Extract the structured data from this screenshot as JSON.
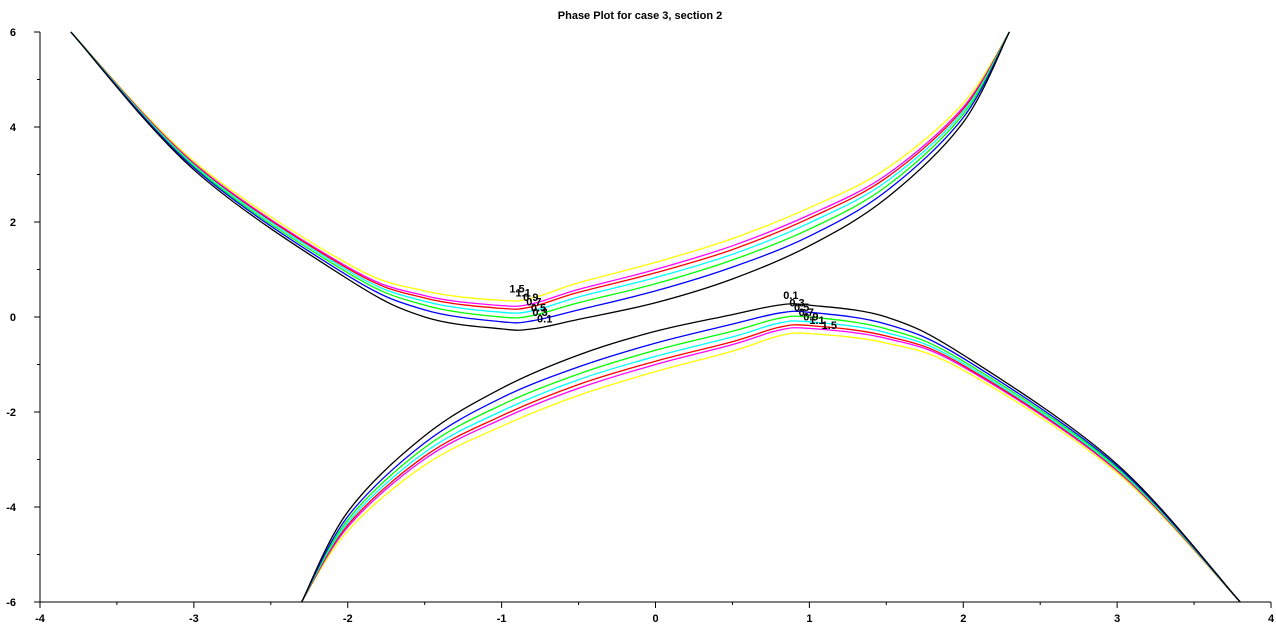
{
  "chart_data": {
    "type": "line",
    "title": "Phase Plot for case 3, section 2",
    "xlabel": "",
    "ylabel": "",
    "xlim": [
      -4,
      4
    ],
    "ylim": [
      -6,
      6
    ],
    "x_ticks": [
      -4,
      -3,
      -2,
      -1,
      0,
      1,
      2,
      3,
      4
    ],
    "y_ticks": [
      -6,
      -4,
      -2,
      0,
      2,
      4,
      6
    ],
    "x_tick_labels": [
      "-4",
      "-3",
      "-2",
      "-1",
      "0",
      "1",
      "2",
      "3",
      "4"
    ],
    "y_tick_labels": [
      "-6",
      "-4",
      "-2",
      "0",
      "2",
      "4",
      "6"
    ],
    "grid": false,
    "series": [
      {
        "name": "0.1",
        "color": "#000000",
        "upper": [
          [
            -3.8,
            6.0
          ],
          [
            -3.0,
            3.1
          ],
          [
            -2.0,
            0.8
          ],
          [
            -1.5,
            0.0
          ],
          [
            -1.0,
            -0.25
          ],
          [
            -0.8,
            -0.25
          ],
          [
            -0.5,
            -0.05
          ],
          [
            0.0,
            0.3
          ],
          [
            0.5,
            0.8
          ],
          [
            1.0,
            1.5
          ],
          [
            1.5,
            2.5
          ],
          [
            2.0,
            4.1
          ],
          [
            2.3,
            6.0
          ]
        ],
        "lower": [
          [
            -2.3,
            -6.0
          ],
          [
            -2.0,
            -4.1
          ],
          [
            -1.5,
            -2.5
          ],
          [
            -1.0,
            -1.5
          ],
          [
            -0.5,
            -0.8
          ],
          [
            0.0,
            -0.3
          ],
          [
            0.5,
            0.05
          ],
          [
            0.8,
            0.25
          ],
          [
            1.0,
            0.25
          ],
          [
            1.5,
            0.0
          ],
          [
            2.0,
            -0.8
          ],
          [
            3.0,
            -3.1
          ],
          [
            3.8,
            -6.0
          ]
        ]
      },
      {
        "name": "0.3",
        "color": "#0000ff",
        "upper": [
          [
            -3.8,
            6.0
          ],
          [
            -3.0,
            3.14
          ],
          [
            -2.0,
            0.87
          ],
          [
            -1.5,
            0.15
          ],
          [
            -1.0,
            -0.1
          ],
          [
            -0.8,
            -0.08
          ],
          [
            -0.5,
            0.15
          ],
          [
            0.0,
            0.55
          ],
          [
            0.5,
            1.05
          ],
          [
            1.0,
            1.7
          ],
          [
            1.5,
            2.65
          ],
          [
            2.0,
            4.2
          ],
          [
            2.3,
            6.0
          ]
        ],
        "lower": [
          [
            -2.3,
            -6.0
          ],
          [
            -2.0,
            -4.2
          ],
          [
            -1.5,
            -2.65
          ],
          [
            -1.0,
            -1.7
          ],
          [
            -0.5,
            -1.05
          ],
          [
            0.0,
            -0.55
          ],
          [
            0.5,
            -0.15
          ],
          [
            0.8,
            0.08
          ],
          [
            1.0,
            0.1
          ],
          [
            1.5,
            -0.15
          ],
          [
            2.0,
            -0.87
          ],
          [
            3.0,
            -3.14
          ],
          [
            3.8,
            -6.0
          ]
        ]
      },
      {
        "name": "0.5",
        "color": "#00ff00",
        "upper": [
          [
            -3.8,
            6.0
          ],
          [
            -3.0,
            3.17
          ],
          [
            -2.0,
            0.93
          ],
          [
            -1.5,
            0.25
          ],
          [
            -1.0,
            0.0
          ],
          [
            -0.8,
            0.03
          ],
          [
            -0.5,
            0.3
          ],
          [
            0.0,
            0.7
          ],
          [
            0.5,
            1.2
          ],
          [
            1.0,
            1.85
          ],
          [
            1.5,
            2.75
          ],
          [
            2.0,
            4.27
          ],
          [
            2.3,
            6.0
          ]
        ],
        "lower": [
          [
            -2.3,
            -6.0
          ],
          [
            -2.0,
            -4.27
          ],
          [
            -1.5,
            -2.75
          ],
          [
            -1.0,
            -1.85
          ],
          [
            -0.5,
            -1.2
          ],
          [
            0.0,
            -0.7
          ],
          [
            0.5,
            -0.3
          ],
          [
            0.8,
            -0.03
          ],
          [
            1.0,
            0.0
          ],
          [
            1.5,
            -0.25
          ],
          [
            2.0,
            -0.93
          ],
          [
            3.0,
            -3.17
          ],
          [
            3.8,
            -6.0
          ]
        ]
      },
      {
        "name": "0.7",
        "color": "#00ffff",
        "upper": [
          [
            -3.8,
            6.0
          ],
          [
            -3.0,
            3.2
          ],
          [
            -2.0,
            0.98
          ],
          [
            -1.5,
            0.33
          ],
          [
            -1.0,
            0.1
          ],
          [
            -0.8,
            0.13
          ],
          [
            -0.5,
            0.42
          ],
          [
            0.0,
            0.83
          ],
          [
            0.5,
            1.32
          ],
          [
            1.0,
            1.98
          ],
          [
            1.5,
            2.85
          ],
          [
            2.0,
            4.33
          ],
          [
            2.3,
            6.0
          ]
        ],
        "lower": [
          [
            -2.3,
            -6.0
          ],
          [
            -2.0,
            -4.33
          ],
          [
            -1.5,
            -2.85
          ],
          [
            -1.0,
            -1.98
          ],
          [
            -0.5,
            -1.32
          ],
          [
            0.0,
            -0.83
          ],
          [
            0.5,
            -0.42
          ],
          [
            0.8,
            -0.13
          ],
          [
            1.0,
            -0.1
          ],
          [
            1.5,
            -0.33
          ],
          [
            2.0,
            -0.98
          ],
          [
            3.0,
            -3.2
          ],
          [
            3.8,
            -6.0
          ]
        ]
      },
      {
        "name": "0.9",
        "color": "#ff0000",
        "upper": [
          [
            -3.8,
            6.0
          ],
          [
            -3.0,
            3.22
          ],
          [
            -2.0,
            1.02
          ],
          [
            -1.5,
            0.4
          ],
          [
            -1.0,
            0.18
          ],
          [
            -0.8,
            0.22
          ],
          [
            -0.5,
            0.52
          ],
          [
            0.0,
            0.93
          ],
          [
            0.5,
            1.42
          ],
          [
            1.0,
            2.08
          ],
          [
            1.5,
            2.93
          ],
          [
            2.0,
            4.38
          ],
          [
            2.3,
            6.0
          ]
        ],
        "lower": [
          [
            -2.3,
            -6.0
          ],
          [
            -2.0,
            -4.38
          ],
          [
            -1.5,
            -2.93
          ],
          [
            -1.0,
            -2.08
          ],
          [
            -0.5,
            -1.42
          ],
          [
            0.0,
            -0.93
          ],
          [
            0.5,
            -0.52
          ],
          [
            0.8,
            -0.22
          ],
          [
            1.0,
            -0.18
          ],
          [
            1.5,
            -0.4
          ],
          [
            2.0,
            -1.02
          ],
          [
            3.0,
            -3.22
          ],
          [
            3.8,
            -6.0
          ]
        ]
      },
      {
        "name": "1.1",
        "color": "#ff00ff",
        "upper": [
          [
            -3.8,
            6.0
          ],
          [
            -3.0,
            3.24
          ],
          [
            -2.0,
            1.05
          ],
          [
            -1.5,
            0.45
          ],
          [
            -1.0,
            0.24
          ],
          [
            -0.8,
            0.28
          ],
          [
            -0.5,
            0.58
          ],
          [
            0.0,
            1.0
          ],
          [
            0.5,
            1.5
          ],
          [
            1.0,
            2.15
          ],
          [
            1.5,
            2.99
          ],
          [
            2.0,
            4.42
          ],
          [
            2.3,
            6.0
          ]
        ],
        "lower": [
          [
            -2.3,
            -6.0
          ],
          [
            -2.0,
            -4.42
          ],
          [
            -1.5,
            -2.99
          ],
          [
            -1.0,
            -2.15
          ],
          [
            -0.5,
            -1.5
          ],
          [
            0.0,
            -1.0
          ],
          [
            0.5,
            -0.58
          ],
          [
            0.8,
            -0.28
          ],
          [
            1.0,
            -0.24
          ],
          [
            1.5,
            -0.45
          ],
          [
            2.0,
            -1.05
          ],
          [
            3.0,
            -3.24
          ],
          [
            3.8,
            -6.0
          ]
        ]
      },
      {
        "name": "1.5",
        "color": "#ffff00",
        "upper": [
          [
            -3.8,
            6.0
          ],
          [
            -3.0,
            3.28
          ],
          [
            -2.0,
            1.12
          ],
          [
            -1.5,
            0.55
          ],
          [
            -1.0,
            0.35
          ],
          [
            -0.8,
            0.4
          ],
          [
            -0.5,
            0.72
          ],
          [
            0.0,
            1.15
          ],
          [
            0.5,
            1.65
          ],
          [
            1.0,
            2.3
          ],
          [
            1.5,
            3.12
          ],
          [
            2.0,
            4.5
          ],
          [
            2.3,
            6.0
          ]
        ],
        "lower": [
          [
            -2.3,
            -6.0
          ],
          [
            -2.0,
            -4.5
          ],
          [
            -1.5,
            -3.12
          ],
          [
            -1.0,
            -2.3
          ],
          [
            -0.5,
            -1.65
          ],
          [
            0.0,
            -1.15
          ],
          [
            0.5,
            -0.72
          ],
          [
            0.8,
            -0.4
          ],
          [
            1.0,
            -0.35
          ],
          [
            1.5,
            -0.55
          ],
          [
            2.0,
            -1.12
          ],
          [
            3.0,
            -3.28
          ],
          [
            3.8,
            -6.0
          ]
        ]
      }
    ],
    "curve_labels_upper": [
      {
        "text": "1.5",
        "x": -0.95,
        "y": 0.52
      },
      {
        "text": "1.1",
        "x": -0.91,
        "y": 0.43
      },
      {
        "text": "0.9",
        "x": -0.86,
        "y": 0.34
      },
      {
        "text": "0.7",
        "x": -0.84,
        "y": 0.24
      },
      {
        "text": "0.5",
        "x": -0.81,
        "y": 0.12
      },
      {
        "text": "0.3",
        "x": -0.8,
        "y": 0.02
      },
      {
        "text": "0.1",
        "x": -0.77,
        "y": -0.12
      }
    ],
    "curve_labels_lower": [
      {
        "text": "0.1",
        "x": 0.83,
        "y": 0.38
      },
      {
        "text": "0.3",
        "x": 0.87,
        "y": 0.22
      },
      {
        "text": "0.5",
        "x": 0.9,
        "y": 0.13
      },
      {
        "text": "0.7",
        "x": 0.93,
        "y": 0.02
      },
      {
        "text": "0.9",
        "x": 0.96,
        "y": -0.07
      },
      {
        "text": "1.1",
        "x": 1.0,
        "y": -0.15
      },
      {
        "text": "1.5",
        "x": 1.08,
        "y": -0.25
      }
    ]
  }
}
